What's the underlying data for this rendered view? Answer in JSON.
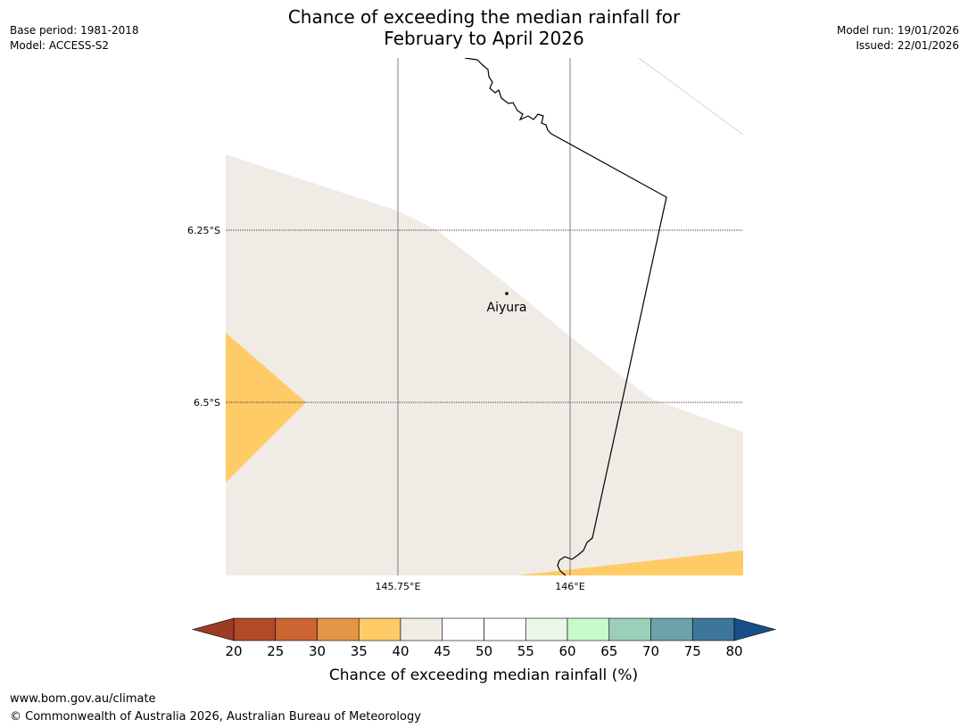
{
  "title": {
    "line1": "Chance of exceeding the median rainfall for",
    "line2": "February to April 2026"
  },
  "header_left": {
    "base_period": "Base period: 1981-2018",
    "model": "Model: ACCESS-S2"
  },
  "header_right": {
    "model_run": "Model run: 19/01/2026",
    "issued": "Issued: 22/01/2026"
  },
  "map": {
    "latitude_labels": [
      "6.25°S",
      "6.5°S"
    ],
    "longitude_labels": [
      "145.75°E",
      "146°E"
    ],
    "place": {
      "name": "Aiyura",
      "marker_icon": "location-dot-icon"
    },
    "colors": {
      "band_40_45": "#f0ebe5",
      "band_35_40": "#fecb67",
      "coastline": "#000000",
      "gridline": "#808080"
    }
  },
  "colorbar": {
    "label": "Chance of exceeding median rainfall (%)",
    "ticks": [
      "20",
      "25",
      "30",
      "35",
      "40",
      "45",
      "50",
      "55",
      "60",
      "65",
      "70",
      "75",
      "80"
    ],
    "under_color": "#9b3c27",
    "over_color": "#174f86",
    "bins": [
      {
        "range": "20-25",
        "color": "#b14a27"
      },
      {
        "range": "25-30",
        "color": "#cc6532"
      },
      {
        "range": "30-35",
        "color": "#e39646"
      },
      {
        "range": "35-40",
        "color": "#fecb67"
      },
      {
        "range": "40-45",
        "color": "#f0ebe5"
      },
      {
        "range": "45-50",
        "color": "#ffffff"
      },
      {
        "range": "50-55",
        "color": "#ffffff"
      },
      {
        "range": "55-60",
        "color": "#eaf6e9"
      },
      {
        "range": "60-65",
        "color": "#c8fbca"
      },
      {
        "range": "65-70",
        "color": "#9bcfb9"
      },
      {
        "range": "70-75",
        "color": "#6ca3a8"
      },
      {
        "range": "75-80",
        "color": "#3d7699"
      }
    ]
  },
  "footer": {
    "website": "www.bom.gov.au/climate",
    "copyright": "© Commonwealth of Australia 2026, Australian Bureau of Meteorology"
  }
}
